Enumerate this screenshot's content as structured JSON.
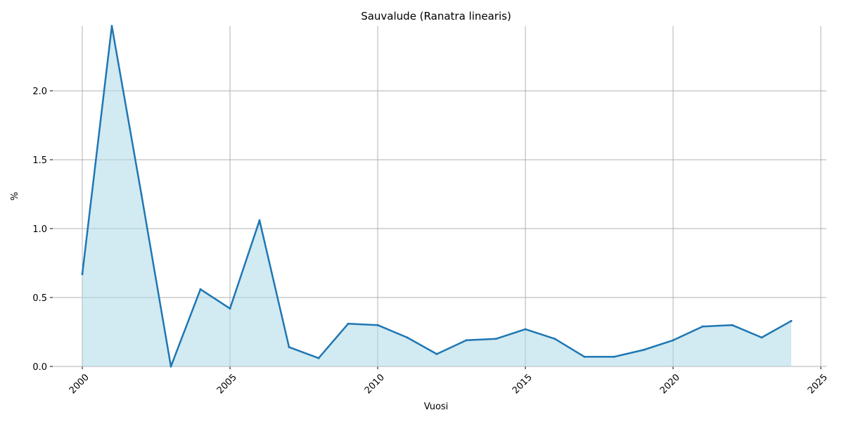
{
  "chart_data": {
    "type": "area",
    "title": "Sauvalude (Ranatra linearis)",
    "xlabel": "Vuosi",
    "ylabel": "%",
    "x": [
      2000,
      2001,
      2002,
      2003,
      2004,
      2005,
      2006,
      2007,
      2008,
      2009,
      2010,
      2011,
      2012,
      2013,
      2014,
      2015,
      2016,
      2017,
      2018,
      2019,
      2020,
      2021,
      2022,
      2023,
      2024
    ],
    "series": [
      {
        "values": [
          0.67,
          2.47,
          1.25,
          0.0,
          0.56,
          0.42,
          1.06,
          0.14,
          0.06,
          0.31,
          0.3,
          0.21,
          0.09,
          0.19,
          0.2,
          0.27,
          0.2,
          0.07,
          0.07,
          0.12,
          0.19,
          0.29,
          0.3,
          0.21,
          0.33
        ]
      }
    ],
    "xlim": [
      2000,
      2025
    ],
    "ylim": [
      0,
      2.47
    ],
    "xticks": [
      "2000",
      "2005",
      "2010",
      "2015",
      "2020",
      "2025"
    ],
    "yticks": [
      "0.0",
      "0.5",
      "1.0",
      "1.5",
      "2.0"
    ],
    "grid": true,
    "colors": {
      "line": "#1f77b4",
      "fill": "#add8e6",
      "grid": "#b0b0b0"
    }
  }
}
